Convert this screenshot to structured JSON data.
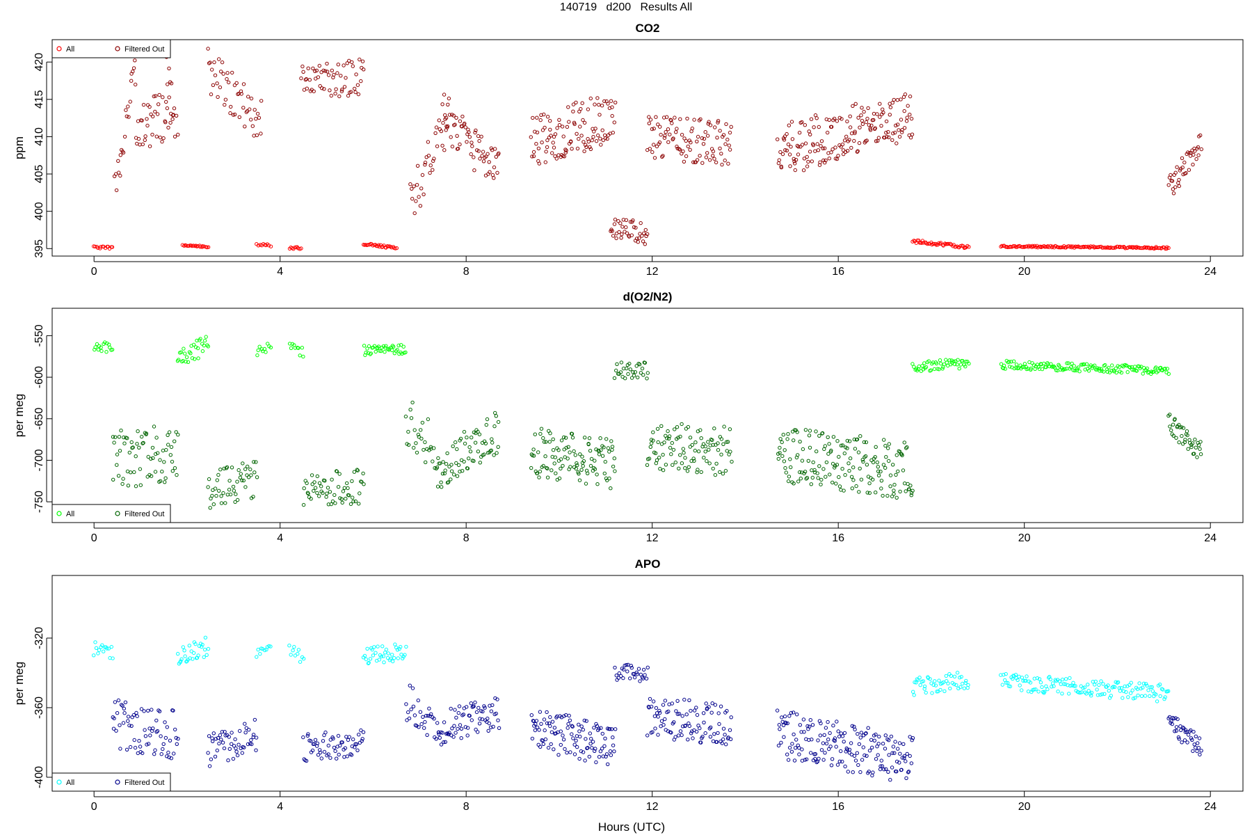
{
  "figure": {
    "title": "140719   d200   Results All",
    "xlabel": "Hours (UTC)"
  },
  "chart_data": [
    {
      "type": "scatter",
      "title": "CO2",
      "ylabel": "ppm",
      "xlim": [
        -0.9,
        24.7
      ],
      "ylim": [
        394,
        423
      ],
      "xticks": [
        0,
        4,
        8,
        12,
        16,
        20,
        24
      ],
      "yticks": [
        395,
        400,
        405,
        410,
        415,
        420
      ],
      "legend_position": "top-left",
      "colors": {
        "all": "#ff0000",
        "filtered": "#8b0000"
      },
      "series": [
        {
          "name": "All",
          "key": "all",
          "points": []
        },
        {
          "name": "Filtered Out",
          "key": "filtered",
          "points": []
        }
      ],
      "segments": [
        {
          "key": "all",
          "x0": 0.0,
          "x1": 0.4,
          "n": 14,
          "y0": 395.2,
          "y1": 395.1,
          "jitter": 0.15
        },
        {
          "key": "filtered",
          "x0": 0.45,
          "x1": 0.9,
          "n": 22,
          "y0": 403,
          "y1": 419,
          "jitter": 2.5
        },
        {
          "key": "filtered",
          "x0": 0.9,
          "x1": 1.7,
          "n": 40,
          "y0": 410,
          "y1": 414,
          "jitter": 3.5
        },
        {
          "key": "filtered",
          "x0": 1.55,
          "x1": 1.8,
          "n": 10,
          "y0": 420,
          "y1": 410,
          "jitter": 2.5
        },
        {
          "key": "all",
          "x0": 1.9,
          "x1": 2.45,
          "n": 22,
          "y0": 395.5,
          "y1": 395.2,
          "jitter": 0.15
        },
        {
          "key": "filtered",
          "x0": 2.45,
          "x1": 3.6,
          "n": 50,
          "y0": 419,
          "y1": 412,
          "jitter": 3.0
        },
        {
          "key": "all",
          "x0": 3.5,
          "x1": 3.8,
          "n": 10,
          "y0": 395.6,
          "y1": 395.4,
          "jitter": 0.2
        },
        {
          "key": "all",
          "x0": 4.2,
          "x1": 4.45,
          "n": 10,
          "y0": 395.1,
          "y1": 395.1,
          "jitter": 0.15
        },
        {
          "key": "filtered",
          "x0": 4.45,
          "x1": 5.8,
          "n": 60,
          "y0": 417,
          "y1": 418,
          "jitter": 2.5
        },
        {
          "key": "all",
          "x0": 5.8,
          "x1": 6.5,
          "n": 30,
          "y0": 395.6,
          "y1": 395.1,
          "jitter": 0.15
        },
        {
          "key": "filtered",
          "x0": 6.8,
          "x1": 7.6,
          "n": 35,
          "y0": 401,
          "y1": 412,
          "jitter": 3.5
        },
        {
          "key": "filtered",
          "x0": 7.5,
          "x1": 8.7,
          "n": 65,
          "y0": 413,
          "y1": 405,
          "jitter": 3.0
        },
        {
          "key": "filtered",
          "x0": 9.4,
          "x1": 11.2,
          "n": 110,
          "y0": 409,
          "y1": 413,
          "jitter": 3.5
        },
        {
          "key": "filtered",
          "x0": 11.1,
          "x1": 11.9,
          "n": 40,
          "y0": 398,
          "y1": 397,
          "jitter": 1.5
        },
        {
          "key": "filtered",
          "x0": 11.9,
          "x1": 13.7,
          "n": 100,
          "y0": 410,
          "y1": 409,
          "jitter": 3.0
        },
        {
          "key": "filtered",
          "x0": 14.7,
          "x1": 17.6,
          "n": 175,
          "y0": 408,
          "y1": 413,
          "jitter": 3.5
        },
        {
          "key": "all",
          "x0": 17.6,
          "x1": 18.8,
          "n": 50,
          "y0": 396.0,
          "y1": 395.2,
          "jitter": 0.2
        },
        {
          "key": "all",
          "x0": 19.5,
          "x1": 23.1,
          "n": 150,
          "y0": 395.3,
          "y1": 395.1,
          "jitter": 0.12
        },
        {
          "key": "filtered",
          "x0": 23.1,
          "x1": 23.8,
          "n": 40,
          "y0": 403,
          "y1": 409,
          "jitter": 1.8
        }
      ]
    },
    {
      "type": "scatter",
      "title": "d(O2/N2)",
      "ylabel": "per meg",
      "xlim": [
        -0.9,
        24.7
      ],
      "ylim": [
        -775,
        -517
      ],
      "xticks": [
        0,
        4,
        8,
        12,
        16,
        20,
        24
      ],
      "yticks": [
        -750,
        -700,
        -650,
        -600,
        -550
      ],
      "legend_position": "bottom-left",
      "colors": {
        "all": "#00ff00",
        "filtered": "#006400"
      },
      "series": [
        {
          "name": "All",
          "key": "all",
          "points": []
        },
        {
          "name": "Filtered Out",
          "key": "filtered",
          "points": []
        }
      ],
      "segments": [
        {
          "key": "all",
          "x0": 0.0,
          "x1": 0.4,
          "n": 15,
          "y0": -562,
          "y1": -565,
          "jitter": 7
        },
        {
          "key": "filtered",
          "x0": 0.4,
          "x1": 1.8,
          "n": 70,
          "y0": -700,
          "y1": -690,
          "jitter": 35
        },
        {
          "key": "all",
          "x0": 1.8,
          "x1": 2.45,
          "n": 30,
          "y0": -575,
          "y1": -562,
          "jitter": 12
        },
        {
          "key": "filtered",
          "x0": 2.45,
          "x1": 3.5,
          "n": 50,
          "y0": -740,
          "y1": -720,
          "jitter": 25
        },
        {
          "key": "all",
          "x0": 3.5,
          "x1": 3.8,
          "n": 10,
          "y0": -568,
          "y1": -563,
          "jitter": 6
        },
        {
          "key": "all",
          "x0": 4.2,
          "x1": 4.5,
          "n": 10,
          "y0": -563,
          "y1": -570,
          "jitter": 6
        },
        {
          "key": "filtered",
          "x0": 4.5,
          "x1": 5.8,
          "n": 60,
          "y0": -735,
          "y1": -730,
          "jitter": 22
        },
        {
          "key": "all",
          "x0": 5.8,
          "x1": 6.7,
          "n": 40,
          "y0": -568,
          "y1": -566,
          "jitter": 6
        },
        {
          "key": "filtered",
          "x0": 6.7,
          "x1": 7.4,
          "n": 30,
          "y0": -650,
          "y1": -690,
          "jitter": 30
        },
        {
          "key": "filtered",
          "x0": 7.4,
          "x1": 8.7,
          "n": 70,
          "y0": -710,
          "y1": -665,
          "jitter": 25
        },
        {
          "key": "filtered",
          "x0": 9.4,
          "x1": 11.2,
          "n": 110,
          "y0": -690,
          "y1": -705,
          "jitter": 30
        },
        {
          "key": "filtered",
          "x0": 11.2,
          "x1": 11.9,
          "n": 30,
          "y0": -592,
          "y1": -592,
          "jitter": 10
        },
        {
          "key": "filtered",
          "x0": 11.9,
          "x1": 13.7,
          "n": 100,
          "y0": -680,
          "y1": -690,
          "jitter": 30
        },
        {
          "key": "filtered",
          "x0": 14.7,
          "x1": 17.6,
          "n": 175,
          "y0": -690,
          "y1": -715,
          "jitter": 35
        },
        {
          "key": "all",
          "x0": 17.6,
          "x1": 18.8,
          "n": 50,
          "y0": -588,
          "y1": -583,
          "jitter": 6
        },
        {
          "key": "all",
          "x0": 19.5,
          "x1": 23.1,
          "n": 150,
          "y0": -585,
          "y1": -592,
          "jitter": 5
        },
        {
          "key": "filtered",
          "x0": 23.1,
          "x1": 23.8,
          "n": 40,
          "y0": -655,
          "y1": -690,
          "jitter": 12
        }
      ]
    },
    {
      "type": "scatter",
      "title": "APO",
      "ylabel": "per meg",
      "xlim": [
        -0.9,
        24.7
      ],
      "ylim": [
        -408,
        -284
      ],
      "xticks": [
        0,
        4,
        8,
        12,
        16,
        20,
        24
      ],
      "yticks": [
        -400,
        -360,
        -320
      ],
      "legend_position": "bottom-left",
      "colors": {
        "all": "#00ffff",
        "filtered": "#00008b"
      },
      "series": [
        {
          "name": "All",
          "key": "all",
          "points": []
        },
        {
          "name": "Filtered Out",
          "key": "filtered",
          "points": []
        }
      ],
      "segments": [
        {
          "key": "all",
          "x0": 0.0,
          "x1": 0.4,
          "n": 15,
          "y0": -326,
          "y1": -328,
          "jitter": 4
        },
        {
          "key": "filtered",
          "x0": 0.4,
          "x1": 1.8,
          "n": 70,
          "y0": -370,
          "y1": -375,
          "jitter": 15
        },
        {
          "key": "all",
          "x0": 1.8,
          "x1": 2.45,
          "n": 30,
          "y0": -330,
          "y1": -325,
          "jitter": 6
        },
        {
          "key": "filtered",
          "x0": 2.45,
          "x1": 3.5,
          "n": 50,
          "y0": -385,
          "y1": -375,
          "jitter": 10
        },
        {
          "key": "all",
          "x0": 3.5,
          "x1": 3.8,
          "n": 10,
          "y0": -328,
          "y1": -325,
          "jitter": 3
        },
        {
          "key": "all",
          "x0": 4.2,
          "x1": 4.5,
          "n": 10,
          "y0": -325,
          "y1": -333,
          "jitter": 4
        },
        {
          "key": "filtered",
          "x0": 4.5,
          "x1": 5.8,
          "n": 60,
          "y0": -383,
          "y1": -380,
          "jitter": 8
        },
        {
          "key": "all",
          "x0": 5.8,
          "x1": 6.7,
          "n": 40,
          "y0": -330,
          "y1": -328,
          "jitter": 5
        },
        {
          "key": "filtered",
          "x0": 6.7,
          "x1": 7.4,
          "n": 30,
          "y0": -355,
          "y1": -370,
          "jitter": 12
        },
        {
          "key": "filtered",
          "x0": 7.4,
          "x1": 8.7,
          "n": 70,
          "y0": -372,
          "y1": -362,
          "jitter": 10
        },
        {
          "key": "filtered",
          "x0": 9.4,
          "x1": 11.2,
          "n": 110,
          "y0": -372,
          "y1": -382,
          "jitter": 12
        },
        {
          "key": "filtered",
          "x0": 11.2,
          "x1": 11.9,
          "n": 30,
          "y0": -340,
          "y1": -340,
          "jitter": 5
        },
        {
          "key": "filtered",
          "x0": 11.9,
          "x1": 13.7,
          "n": 100,
          "y0": -365,
          "y1": -370,
          "jitter": 12
        },
        {
          "key": "filtered",
          "x0": 14.7,
          "x1": 17.6,
          "n": 175,
          "y0": -375,
          "y1": -390,
          "jitter": 14
        },
        {
          "key": "all",
          "x0": 17.6,
          "x1": 18.8,
          "n": 50,
          "y0": -348,
          "y1": -344,
          "jitter": 5
        },
        {
          "key": "all",
          "x0": 19.5,
          "x1": 23.1,
          "n": 150,
          "y0": -345,
          "y1": -352,
          "jitter": 5
        },
        {
          "key": "filtered",
          "x0": 23.1,
          "x1": 23.8,
          "n": 40,
          "y0": -368,
          "y1": -383,
          "jitter": 6
        }
      ]
    }
  ]
}
